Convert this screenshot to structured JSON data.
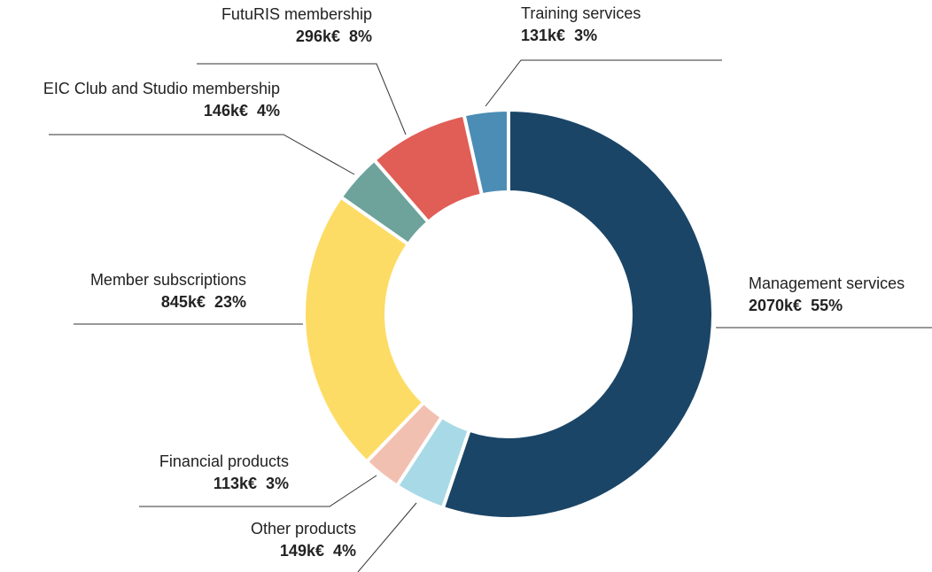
{
  "chart_data": {
    "type": "pie",
    "donut": true,
    "categories": [
      "Management services",
      "Other products",
      "Financial products",
      "Member subscriptions",
      "EIC Club and Studio membership",
      "FutuRIS membership",
      "Training services"
    ],
    "values": [
      2070,
      149,
      113,
      845,
      146,
      296,
      131
    ],
    "value_labels": [
      "2070k€",
      "149k€",
      "113k€",
      "845k€",
      "146k€",
      "296k€",
      "131k€"
    ],
    "percents": [
      55,
      4,
      3,
      23,
      4,
      8,
      3
    ],
    "percent_labels": [
      "55%",
      "4%",
      "3%",
      "23%",
      "4%",
      "8%",
      "3%"
    ],
    "colors": [
      "#1a4567",
      "#a8d9e6",
      "#f2c0b1",
      "#fddc66",
      "#6da39a",
      "#e05e55",
      "#4b8db5"
    ],
    "label_colors": [
      "#1a4567",
      "#92cfe0",
      "#f0b3a1",
      "#f7c955",
      "#6da39a",
      "#e05e55",
      "#4b8db5"
    ]
  }
}
